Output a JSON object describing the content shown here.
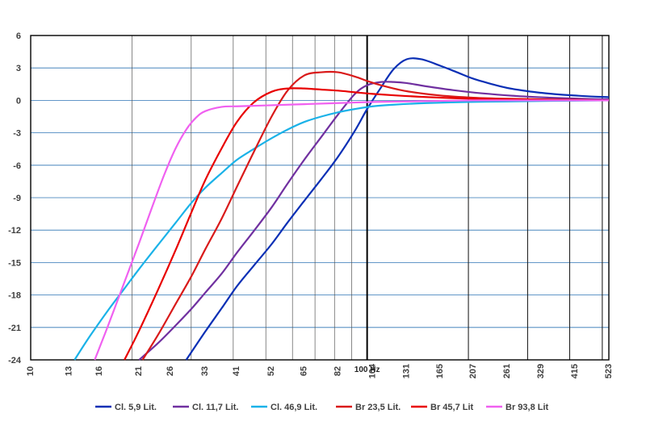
{
  "chart_data": {
    "type": "line",
    "x_scale": "log",
    "xlim": [
      10,
      523
    ],
    "ylim": [
      -24,
      6
    ],
    "y_ticks": [
      6,
      3,
      0,
      -3,
      -6,
      -9,
      -12,
      -15,
      -18,
      -21,
      -24
    ],
    "x_tick_labels": [
      "10",
      "13",
      "16",
      "21",
      "26",
      "33",
      "41",
      "52",
      "65",
      "82",
      "104",
      "131",
      "165",
      "207",
      "261",
      "329",
      "415",
      "523"
    ],
    "x_tick_values": [
      10,
      13,
      16,
      21,
      26,
      33,
      41,
      52,
      65,
      82,
      104,
      131,
      165,
      207,
      261,
      329,
      415,
      523
    ],
    "reference_line": {
      "x": 100,
      "label": "100 Hz"
    },
    "grid": true,
    "legend_position": "bottom",
    "series": [
      {
        "name": "Cl. 5,9 Lit.",
        "color": "#0a2fb5",
        "x": [
          29,
          33,
          37,
          41,
          46,
          52,
          58,
          65,
          73,
          82,
          92,
          100,
          110,
          120,
          131,
          145,
          165,
          185,
          207,
          235,
          261,
          300,
          329,
          370,
          415,
          470,
          523
        ],
        "y": [
          -24,
          -21.4,
          -19.2,
          -17.2,
          -15.3,
          -13.3,
          -11.3,
          -9.3,
          -7.3,
          -5.2,
          -2.8,
          -0.8,
          1.2,
          2.9,
          3.8,
          3.8,
          3.2,
          2.6,
          2.0,
          1.5,
          1.15,
          0.85,
          0.7,
          0.55,
          0.45,
          0.35,
          0.3
        ]
      },
      {
        "name": "Cl. 11,7 Lit.",
        "color": "#7030a0",
        "x": [
          21,
          24,
          27,
          30,
          33,
          37,
          41,
          46,
          52,
          58,
          65,
          73,
          82,
          92,
          100,
          110,
          120,
          131,
          150,
          180,
          220,
          280,
          350,
          430,
          523
        ],
        "y": [
          -24,
          -22.4,
          -20.8,
          -19.3,
          -17.8,
          -16.0,
          -14.1,
          -12.1,
          -9.9,
          -7.7,
          -5.5,
          -3.4,
          -1.3,
          0.6,
          1.4,
          1.7,
          1.7,
          1.6,
          1.3,
          0.95,
          0.65,
          0.4,
          0.25,
          0.15,
          0.1
        ]
      },
      {
        "name": "Cl. 46,9 Lit.",
        "color": "#1ab2e8",
        "x": [
          13.5,
          15,
          17,
          19,
          21,
          24,
          27,
          30,
          33,
          37,
          41,
          46,
          52,
          58,
          65,
          73,
          82,
          92,
          104,
          120,
          150,
          200,
          260,
          350,
          523
        ],
        "y": [
          -24,
          -21.8,
          -19.4,
          -17.4,
          -15.6,
          -13.3,
          -11.3,
          -9.5,
          -8.1,
          -6.7,
          -5.5,
          -4.5,
          -3.5,
          -2.7,
          -2.0,
          -1.5,
          -1.1,
          -0.8,
          -0.55,
          -0.4,
          -0.25,
          -0.15,
          -0.1,
          -0.05,
          0
        ]
      },
      {
        "name": "Br 23,5 Lit.",
        "color": "#d91a1a",
        "x": [
          21.5,
          24,
          27,
          30,
          33,
          37,
          41,
          46,
          52,
          58,
          65,
          73,
          82,
          92,
          100,
          110,
          131,
          165,
          207,
          261,
          329,
          415,
          523
        ],
        "y": [
          -24,
          -21.6,
          -18.8,
          -16.3,
          -13.8,
          -10.9,
          -8.0,
          -4.8,
          -1.5,
          0.9,
          2.3,
          2.6,
          2.6,
          2.2,
          1.8,
          1.4,
          0.85,
          0.45,
          0.25,
          0.15,
          0.1,
          0.05,
          0
        ]
      },
      {
        "name": "Br 45,7 Lit",
        "color": "#e80000",
        "x": [
          19,
          21,
          24,
          27,
          30,
          33,
          37,
          41,
          46,
          52,
          58,
          65,
          73,
          82,
          92,
          104,
          131,
          165,
          207,
          261,
          329,
          415,
          523
        ],
        "y": [
          -24,
          -21.3,
          -17.4,
          -13.8,
          -10.4,
          -7.4,
          -4.4,
          -2.0,
          -0.2,
          0.8,
          1.1,
          1.1,
          1.0,
          0.9,
          0.75,
          0.6,
          0.4,
          0.25,
          0.15,
          0.1,
          0.05,
          0.05,
          0
        ]
      },
      {
        "name": "Br 93,8 Lit",
        "color": "#f060f0",
        "x": [
          15.5,
          17,
          19,
          21,
          23,
          25,
          27,
          29,
          31,
          33,
          37,
          41,
          46,
          52,
          65,
          82,
          104,
          131,
          165,
          207,
          261,
          329,
          415,
          523
        ],
        "y": [
          -24,
          -20.8,
          -16.8,
          -13.2,
          -9.8,
          -6.8,
          -4.4,
          -2.7,
          -1.6,
          -1.0,
          -0.6,
          -0.55,
          -0.5,
          -0.45,
          -0.35,
          -0.25,
          -0.15,
          -0.1,
          -0.05,
          0,
          0,
          0,
          0,
          0
        ]
      }
    ]
  }
}
